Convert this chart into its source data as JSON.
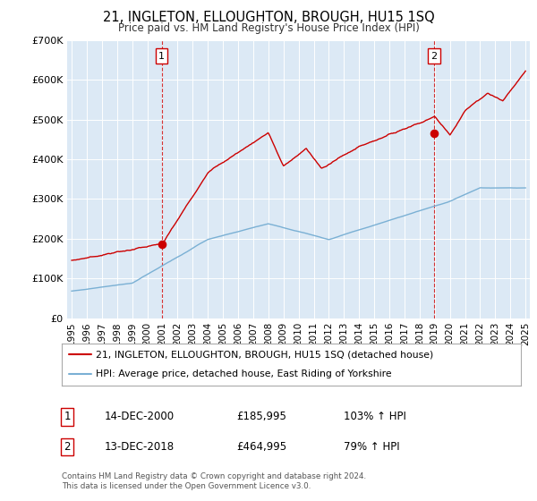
{
  "title": "21, INGLETON, ELLOUGHTON, BROUGH, HU15 1SQ",
  "subtitle": "Price paid vs. HM Land Registry's House Price Index (HPI)",
  "bg_color": "#dce9f5",
  "fig_bg_color": "#ffffff",
  "red_color": "#cc0000",
  "blue_color": "#7ab0d4",
  "marker1_date": 2000.95,
  "marker1_price": 185995,
  "marker2_date": 2018.95,
  "marker2_price": 464995,
  "annotation1": [
    "1",
    "14-DEC-2000",
    "£185,995",
    "103% ↑ HPI"
  ],
  "annotation2": [
    "2",
    "13-DEC-2018",
    "£464,995",
    "79% ↑ HPI"
  ],
  "legend_line1": "21, INGLETON, ELLOUGHTON, BROUGH, HU15 1SQ (detached house)",
  "legend_line2": "HPI: Average price, detached house, East Riding of Yorkshire",
  "footer1": "Contains HM Land Registry data © Crown copyright and database right 2024.",
  "footer2": "This data is licensed under the Open Government Licence v3.0.",
  "ylim": [
    0,
    700000
  ],
  "yticks": [
    0,
    100000,
    200000,
    300000,
    400000,
    500000,
    600000,
    700000
  ],
  "ytick_labels": [
    "£0",
    "£100K",
    "£200K",
    "£300K",
    "£400K",
    "£500K",
    "£600K",
    "£700K"
  ],
  "xlim_start": 1994.7,
  "xlim_end": 2025.3,
  "xticks": [
    1995,
    1996,
    1997,
    1998,
    1999,
    2000,
    2001,
    2002,
    2003,
    2004,
    2005,
    2006,
    2007,
    2008,
    2009,
    2010,
    2011,
    2012,
    2013,
    2014,
    2015,
    2016,
    2017,
    2018,
    2019,
    2020,
    2021,
    2022,
    2023,
    2024,
    2025
  ]
}
